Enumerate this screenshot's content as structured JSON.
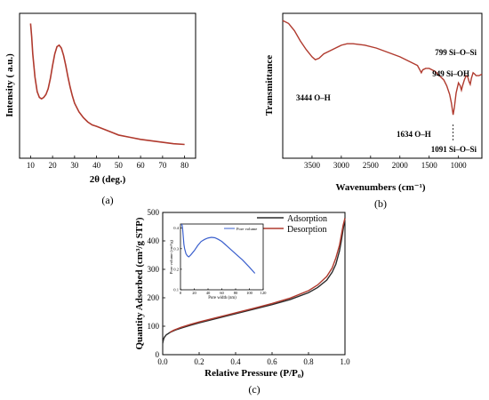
{
  "colors": {
    "xrd": "#b03a2e",
    "ftir": "#b03a2e",
    "adsorption": "#2b2b2b",
    "desorption": "#b03a2e",
    "pore": "#3a5fcd"
  },
  "chart_data": [
    {
      "panel": "(a)",
      "type": "line",
      "xlabel": "2θ (deg.)",
      "ylabel": "Intensity ( a.u.)",
      "xlim": [
        5,
        85
      ],
      "x_ticks": [
        "10",
        "20",
        "30",
        "40",
        "50",
        "60",
        "70",
        "80"
      ],
      "y_ticks": [],
      "series": [
        {
          "x": [
            10,
            10.5,
            11,
            12,
            13,
            14,
            15,
            16,
            17,
            18,
            19,
            20,
            21,
            22,
            23,
            24,
            25,
            26,
            27,
            28,
            29,
            30,
            32,
            34,
            36,
            38,
            40,
            45,
            50,
            55,
            60,
            65,
            70,
            75,
            80
          ],
          "y": [
            0.93,
            0.84,
            0.72,
            0.56,
            0.46,
            0.42,
            0.41,
            0.42,
            0.44,
            0.48,
            0.55,
            0.64,
            0.72,
            0.77,
            0.78,
            0.76,
            0.71,
            0.64,
            0.56,
            0.49,
            0.43,
            0.38,
            0.32,
            0.28,
            0.25,
            0.23,
            0.22,
            0.19,
            0.16,
            0.145,
            0.13,
            0.12,
            0.11,
            0.1,
            0.095
          ]
        }
      ]
    },
    {
      "panel": "(b)",
      "type": "line",
      "xlabel": "Wavenumbers (cm⁻¹)",
      "ylabel": "Transmittance",
      "xlim": [
        4000,
        600
      ],
      "x_ticks": [
        "3500",
        "3000",
        "2500",
        "2000",
        "1500",
        "1000"
      ],
      "x_tick_values": [
        3500,
        3000,
        2500,
        2000,
        1500,
        1000
      ],
      "y_ticks": [],
      "series": [
        {
          "x": [
            4000,
            3900,
            3800,
            3700,
            3600,
            3500,
            3444,
            3380,
            3300,
            3200,
            3100,
            3000,
            2900,
            2800,
            2600,
            2400,
            2200,
            2000,
            1800,
            1700,
            1660,
            1634,
            1610,
            1560,
            1500,
            1450,
            1400,
            1350,
            1300,
            1250,
            1200,
            1150,
            1120,
            1091,
            1070,
            1040,
            1000,
            970,
            949,
            930,
            900,
            870,
            840,
            820,
            799,
            780,
            750,
            720,
            700,
            650,
            600
          ],
          "y": [
            0.95,
            0.93,
            0.88,
            0.81,
            0.75,
            0.7,
            0.68,
            0.69,
            0.72,
            0.74,
            0.76,
            0.78,
            0.79,
            0.79,
            0.78,
            0.76,
            0.73,
            0.7,
            0.66,
            0.64,
            0.61,
            0.59,
            0.61,
            0.62,
            0.62,
            0.61,
            0.6,
            0.58,
            0.56,
            0.54,
            0.5,
            0.44,
            0.38,
            0.3,
            0.35,
            0.45,
            0.52,
            0.5,
            0.47,
            0.5,
            0.54,
            0.57,
            0.56,
            0.53,
            0.51,
            0.55,
            0.59,
            0.58,
            0.57,
            0.57,
            0.58
          ]
        }
      ],
      "annotations": [
        {
          "text": "3444 O–H",
          "x": 3444
        },
        {
          "text": "1634 O–H",
          "x": 1634
        },
        {
          "text": "799 Si–O–Si",
          "x": 799
        },
        {
          "text": "949 Si–OH",
          "x": 949
        },
        {
          "text": "1091 Si–O–Si",
          "x": 1091
        }
      ]
    },
    {
      "panel": "(c)",
      "type": "line",
      "xlabel": "Relative Pressure (P/P₀)",
      "ylabel": "Quantity Adsorbed (cm³/g STP)",
      "xlim": [
        0,
        1
      ],
      "ylim": [
        0,
        500
      ],
      "x_ticks": [
        "0.0",
        "0.2",
        "0.4",
        "0.6",
        "0.8",
        "1.0"
      ],
      "x_tick_values": [
        0,
        0.2,
        0.4,
        0.6,
        0.8,
        1.0
      ],
      "y_ticks": [
        "0",
        "100",
        "200",
        "300",
        "400",
        "500"
      ],
      "y_tick_values": [
        0,
        100,
        200,
        300,
        400,
        500
      ],
      "legend": "top-right",
      "series": [
        {
          "name": "Adsorption",
          "x": [
            0.0,
            0.005,
            0.01,
            0.02,
            0.04,
            0.06,
            0.08,
            0.1,
            0.15,
            0.2,
            0.3,
            0.4,
            0.5,
            0.6,
            0.7,
            0.8,
            0.85,
            0.9,
            0.93,
            0.95,
            0.97,
            0.98,
            0.99,
            1.0
          ],
          "y": [
            40,
            55,
            62,
            70,
            78,
            84,
            89,
            93,
            103,
            112,
            128,
            144,
            160,
            176,
            194,
            218,
            236,
            262,
            290,
            318,
            365,
            400,
            440,
            480
          ]
        },
        {
          "name": "Desorption",
          "x": [
            1.0,
            0.99,
            0.98,
            0.97,
            0.95,
            0.93,
            0.9,
            0.85,
            0.8,
            0.7,
            0.6,
            0.5,
            0.4,
            0.3,
            0.2,
            0.15,
            0.1,
            0.08,
            0.06,
            0.04
          ],
          "y": [
            480,
            455,
            420,
            385,
            340,
            305,
            275,
            245,
            225,
            199,
            180,
            163,
            147,
            131,
            115,
            106,
            96,
            91,
            86,
            79
          ]
        }
      ],
      "inset": {
        "type": "line",
        "xlabel": "Pore width (nm)",
        "ylabel": "Pore volume (cm³/g)",
        "xlim": [
          0,
          120
        ],
        "ylim": [
          0.1,
          0.42
        ],
        "x_ticks": [
          "0",
          "20",
          "40",
          "60",
          "80",
          "100",
          "120"
        ],
        "x_tick_values": [
          0,
          20,
          40,
          60,
          80,
          100,
          120
        ],
        "y_ticks": [
          "0.1",
          "0.2",
          "0.3",
          "0.4"
        ],
        "y_tick_values": [
          0.1,
          0.2,
          0.3,
          0.4
        ],
        "series": [
          {
            "name": "Pore volume",
            "x": [
              2,
              3,
              4,
              5,
              6,
              8,
              10,
              12,
              15,
              20,
              25,
              30,
              35,
              40,
              45,
              50,
              55,
              60,
              65,
              70,
              75,
              80,
              90,
              100,
              108
            ],
            "y": [
              0.42,
              0.4,
              0.36,
              0.32,
              0.3,
              0.275,
              0.265,
              0.26,
              0.27,
              0.29,
              0.315,
              0.335,
              0.345,
              0.352,
              0.355,
              0.353,
              0.345,
              0.335,
              0.32,
              0.305,
              0.29,
              0.275,
              0.245,
              0.21,
              0.18
            ]
          }
        ]
      }
    }
  ]
}
